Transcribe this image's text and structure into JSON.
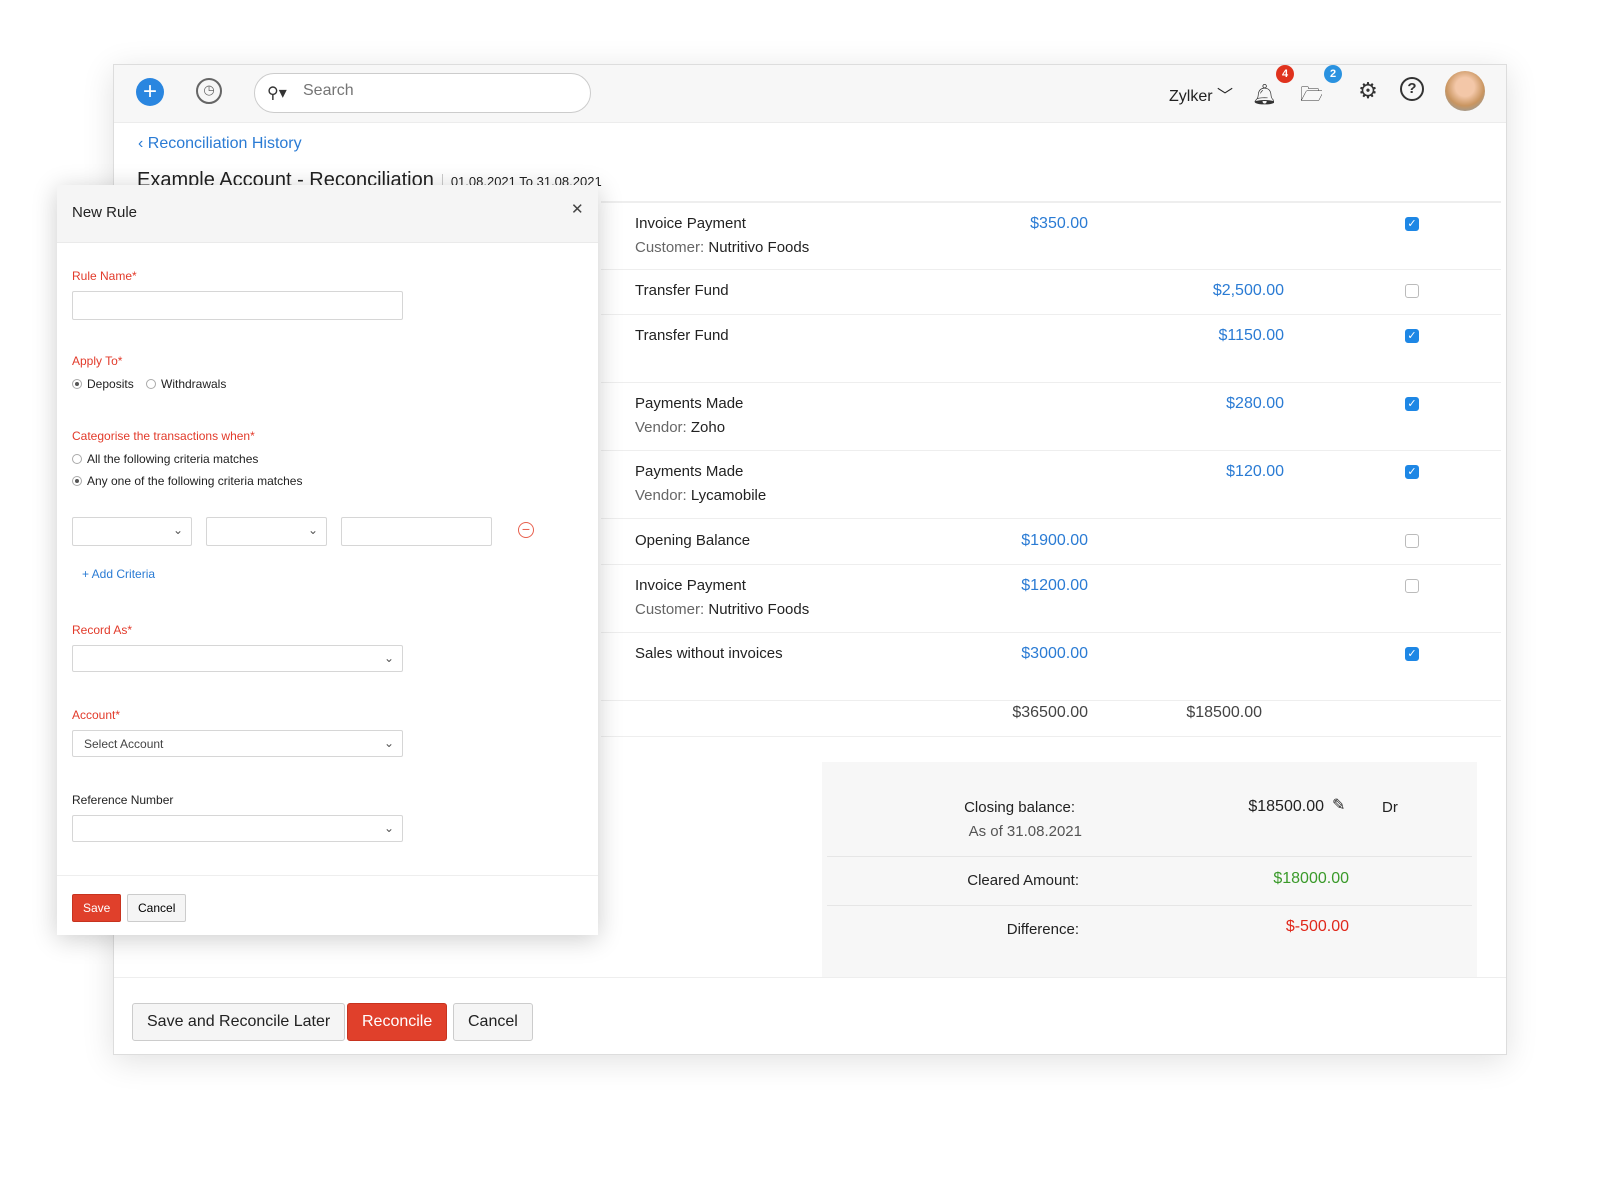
{
  "topbar": {
    "search_placeholder": "Search",
    "org": "Zylker",
    "notifications": "4",
    "files": "2"
  },
  "page": {
    "back": "Reconciliation History",
    "title": "Example Account - Reconciliation",
    "range": "01.08.2021 To 31.08.2021"
  },
  "rows": [
    {
      "name": "Invoice Payment",
      "sub_label": "Customer:",
      "sub_value": "Nutritivo Foods",
      "deposit": "$350.00",
      "withdrawal": "",
      "checked": true
    },
    {
      "name": "Transfer Fund",
      "sub_label": "",
      "sub_value": "",
      "deposit": "",
      "withdrawal": "$2,500.00",
      "checked": false
    },
    {
      "name": "Transfer Fund",
      "sub_label": "",
      "sub_value": "",
      "deposit": "",
      "withdrawal": "$1150.00",
      "checked": true
    },
    {
      "name": "Payments Made",
      "sub_label": "Vendor:",
      "sub_value": "Zoho",
      "deposit": "",
      "withdrawal": "$280.00",
      "checked": true
    },
    {
      "name": "Payments Made",
      "sub_label": "Vendor:",
      "sub_value": "Lycamobile",
      "deposit": "",
      "withdrawal": "$120.00",
      "checked": true
    },
    {
      "name": "Opening Balance",
      "sub_label": "",
      "sub_value": "",
      "deposit": "$1900.00",
      "withdrawal": "",
      "checked": false
    },
    {
      "name": "Invoice Payment",
      "sub_label": "Customer:",
      "sub_value": "Nutritivo Foods",
      "deposit": "$1200.00",
      "withdrawal": "",
      "checked": false
    },
    {
      "name": "Sales without invoices",
      "sub_label": "",
      "sub_value": "",
      "deposit": "$3000.00",
      "withdrawal": "",
      "checked": true
    }
  ],
  "totals": {
    "deposits": "$36500.00",
    "withdrawals": "$18500.00"
  },
  "summary": {
    "closing_label": "Closing balance:",
    "closing_date": "As of 31.08.2021",
    "closing_value": "$18500.00",
    "closing_type": "Dr",
    "cleared_label": "Cleared Amount:",
    "cleared_value": "$18000.00",
    "diff_label": "Difference:",
    "diff_value": "$-500.00"
  },
  "colors": {
    "accent": "#2a7bd4",
    "cleared": "#3a9a2a",
    "difference": "#e0281b",
    "primary_button": "#e0402b"
  },
  "actions": {
    "save_later": "Save and Reconcile Later",
    "reconcile": "Reconcile",
    "cancel": "Cancel"
  },
  "modal": {
    "title": "New Rule",
    "rule_name_label": "Rule Name*",
    "apply_to_label": "Apply To*",
    "apply_deposits": "Deposits",
    "apply_withdrawals": "Withdrawals",
    "apply_selected": "Deposits",
    "categorise_label": "Categorise the transactions when*",
    "crit_all": "All the following criteria matches",
    "crit_any": "Any one of the following criteria matches",
    "crit_selected": "any",
    "add_criteria": "+ Add Criteria",
    "record_as_label": "Record As*",
    "account_label": "Account*",
    "account_value": "Select Account",
    "reference_label": "Reference Number",
    "save": "Save",
    "cancel": "Cancel"
  }
}
